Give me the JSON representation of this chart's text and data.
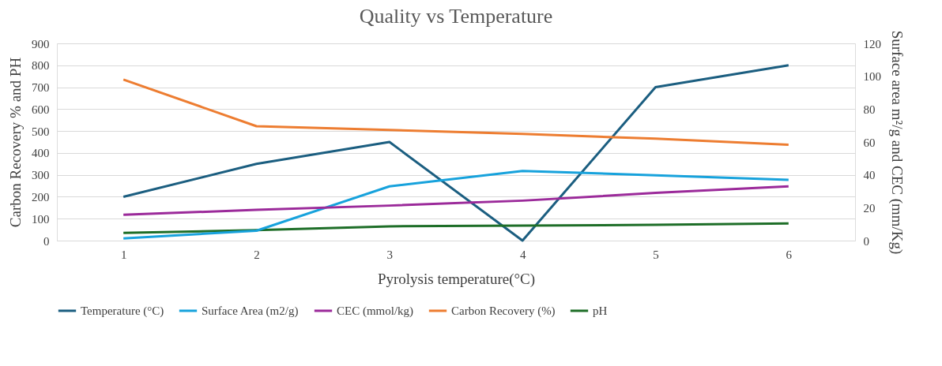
{
  "chart_data": {
    "type": "line",
    "title": "Quality vs Temperature",
    "xlabel": "Pyrolysis temperature(°C)",
    "ylabel": "Carbon Recovery % and PH",
    "y2label": "Surface area m²/g and CEC (mm/Kg)",
    "categories": [
      "1",
      "2",
      "3",
      "4",
      "5",
      "6"
    ],
    "series": [
      {
        "name": "Temperature (°C)",
        "color": "#1b5e80",
        "values": [
          200,
          350,
          450,
          0,
          700,
          800
        ]
      },
      {
        "name": "Surface Area (m2/g)",
        "color": "#17a2dc",
        "axis": "y2",
        "values": [
          1.3,
          6,
          33,
          42.4,
          39.7,
          37
        ]
      },
      {
        "name": "CEC (mmol/kg)",
        "color": "#9b2a9a",
        "axis": "y2",
        "values": [
          15.7,
          18.7,
          21.3,
          24.3,
          29,
          33
        ]
      },
      {
        "name": "Carbon Recovery (%)",
        "color": "#ed7d31",
        "values": [
          735,
          522,
          505,
          487,
          465,
          437
        ]
      },
      {
        "name": "pH",
        "color": "#1e6e28",
        "values": [
          35,
          48,
          65,
          68,
          72,
          78
        ]
      }
    ],
    "ylim": [
      0,
      900
    ],
    "yticks": [
      0,
      100,
      200,
      300,
      400,
      500,
      600,
      700,
      800,
      900
    ],
    "y2lim": [
      0,
      120
    ],
    "y2ticks": [
      0,
      20,
      40,
      60,
      80,
      100,
      120
    ],
    "grid": "y",
    "legend": "bottom",
    "marker": "none",
    "line_style": "solid"
  }
}
